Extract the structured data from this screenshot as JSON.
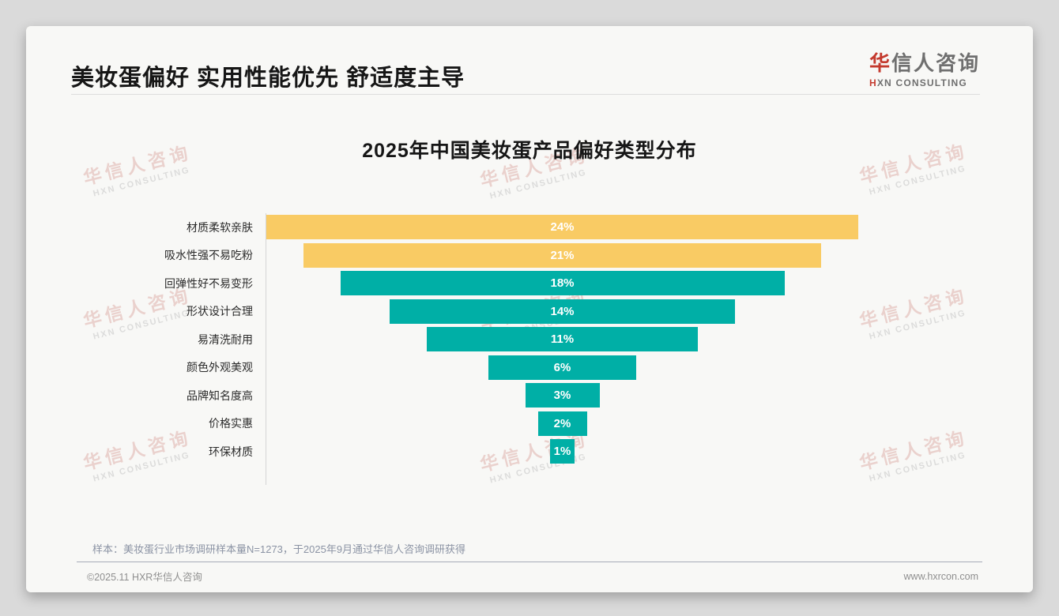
{
  "header": {
    "title": "美妆蛋偏好 实用性能优先 舒适度主导",
    "logo": {
      "cn_red": "华",
      "cn_rest": "信人咨询",
      "en_red": "H",
      "en_rest": "XN CONSULTING"
    }
  },
  "chart_data": {
    "type": "bar",
    "variant": "centered-funnel",
    "orientation": "horizontal",
    "title": "2025年中国美妆蛋产品偏好类型分布",
    "categories": [
      "材质柔软亲肤",
      "吸水性强不易吃粉",
      "回弹性好不易变形",
      "形状设计合理",
      "易清洗耐用",
      "颜色外观美观",
      "品牌知名度高",
      "价格实惠",
      "环保材质"
    ],
    "values": [
      24,
      21,
      18,
      14,
      11,
      6,
      3,
      2,
      1
    ],
    "value_labels": [
      "24%",
      "21%",
      "18%",
      "14%",
      "11%",
      "6%",
      "3%",
      "2%",
      "1%"
    ],
    "unit": "%",
    "xlim": [
      0,
      24
    ],
    "grid": false,
    "legend": false,
    "bar_colors": [
      "#f9cb64",
      "#f9cb64",
      "#00afa6",
      "#00afa6",
      "#00afa6",
      "#00afa6",
      "#00afa6",
      "#00afa6",
      "#00afa6"
    ]
  },
  "note": "样本：美妆蛋行业市场调研样本量N=1273，于2025年9月通过华信人咨询调研获得",
  "footer": {
    "copyright": "©2025.11 HXR华信人咨询",
    "website": "www.hxrcon.com"
  },
  "watermark": {
    "line1": "华信人咨询",
    "line2": "HXN CONSULTING"
  },
  "theme": {
    "page_bg": "#dadada",
    "card_bg": "#f8f8f6",
    "title_color": "#161616",
    "bar_yellow": "#f9cb64",
    "bar_teal": "#00afa6",
    "logo_red": "#c43a2e",
    "logo_gray": "#6f6f6f",
    "axis_color": "#d5d5d5",
    "value_text_color": "#ffffff",
    "note_color": "#8b93a4",
    "footer_color": "#8f8f8f"
  }
}
